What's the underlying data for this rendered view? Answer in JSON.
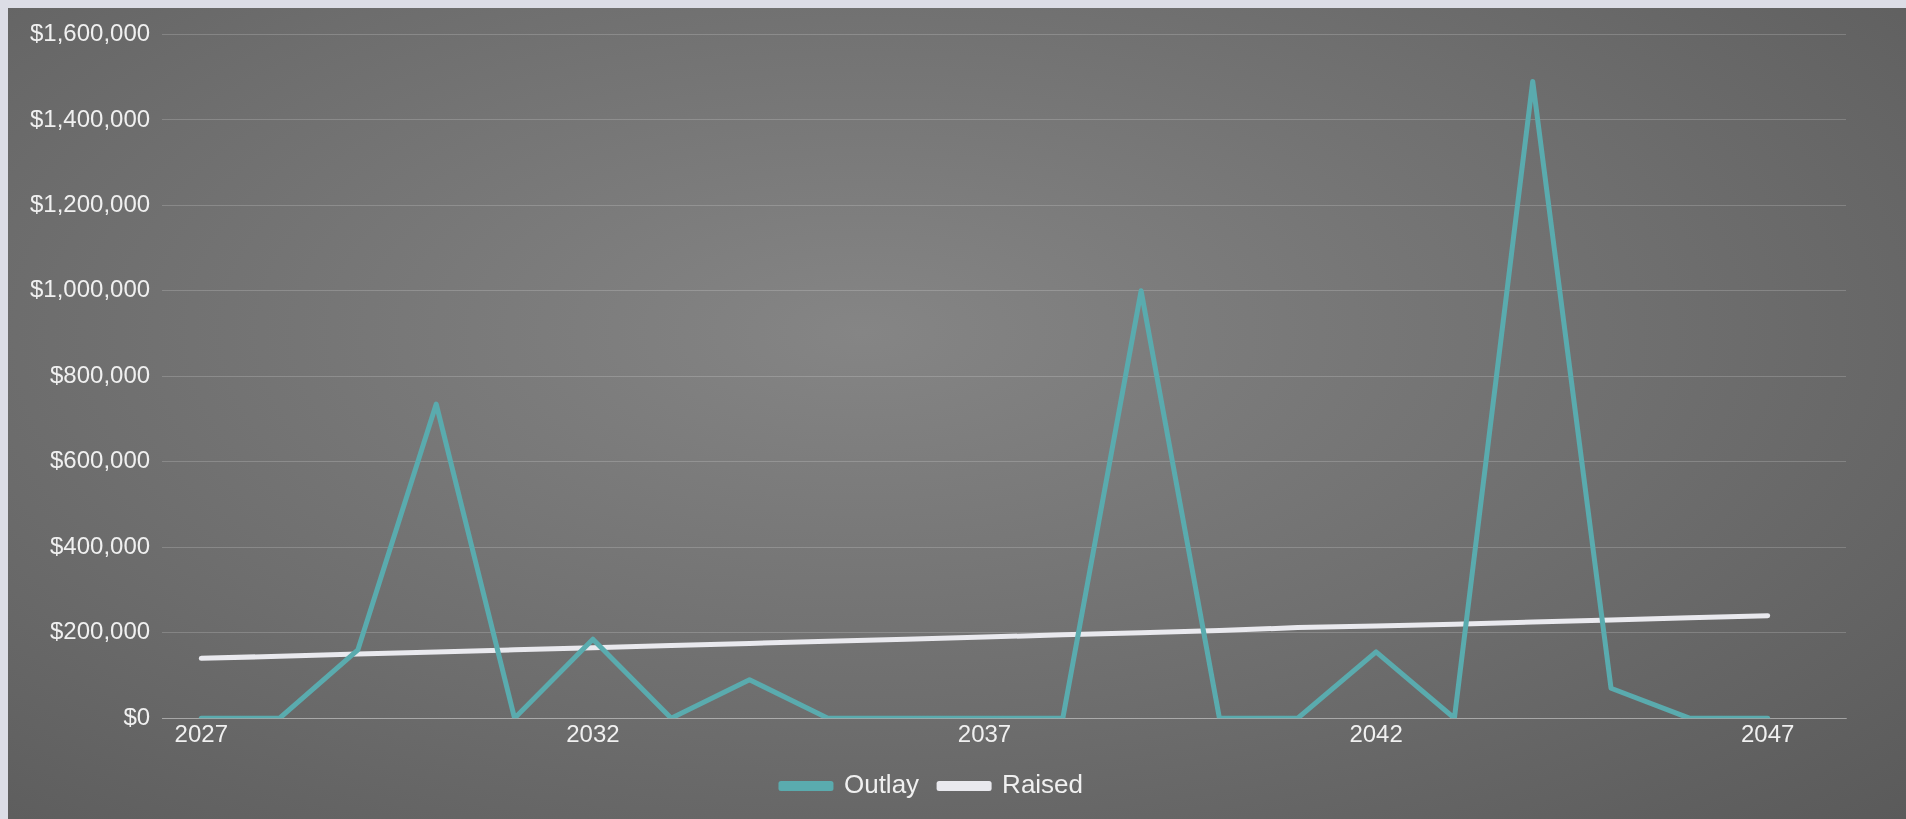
{
  "chart_data": {
    "type": "line",
    "x": [
      2027,
      2028,
      2029,
      2030,
      2031,
      2032,
      2033,
      2034,
      2035,
      2036,
      2037,
      2038,
      2039,
      2040,
      2041,
      2042,
      2043,
      2044,
      2045,
      2046,
      2047
    ],
    "series": [
      {
        "name": "Outlay",
        "color": "#5aabae",
        "values": [
          0,
          0,
          160000,
          735000,
          0,
          185000,
          0,
          90000,
          0,
          0,
          0,
          0,
          1000000,
          0,
          0,
          155000,
          0,
          1490000,
          70000,
          0,
          0
        ]
      },
      {
        "name": "Raised",
        "color": "#e9e9ee",
        "values": [
          140000,
          145000,
          150000,
          155000,
          160000,
          165000,
          170000,
          175000,
          180000,
          185000,
          190000,
          195000,
          200000,
          205000,
          212000,
          216000,
          220000,
          225000,
          230000,
          235000,
          240000
        ]
      }
    ],
    "xlim": [
      2026.5,
      2048
    ],
    "xticks": [
      2027,
      2032,
      2037,
      2042,
      2047
    ],
    "ylim": [
      0,
      1600000
    ],
    "yticks": [
      {
        "value": 0,
        "label": "$0"
      },
      {
        "value": 200000,
        "label": "$200,000"
      },
      {
        "value": 400000,
        "label": "$400,000"
      },
      {
        "value": 600000,
        "label": "$600,000"
      },
      {
        "value": 800000,
        "label": "$800,000"
      },
      {
        "value": 1000000,
        "label": "$1,000,000"
      },
      {
        "value": 1200000,
        "label": "$1,200,000"
      },
      {
        "value": 1400000,
        "label": "$1,400,000"
      },
      {
        "value": 1600000,
        "label": "$1,600,000"
      }
    ],
    "grid": "y",
    "legend": "bottom",
    "marker": "none",
    "line_style": "solid"
  }
}
